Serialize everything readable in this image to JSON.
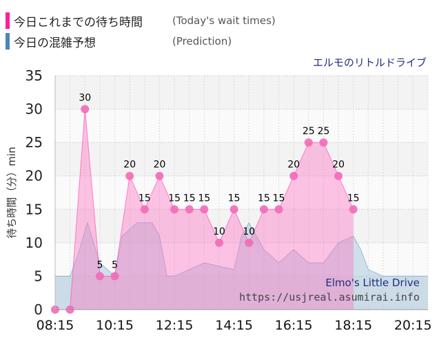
{
  "legend": [
    {
      "label": "今日これまでの待ち時間",
      "sub": "(Today's wait times)",
      "color": "#ff1f9a"
    },
    {
      "label": "今日の混雑予想",
      "sub": "(Prediction)",
      "color": "#4a86b8"
    }
  ],
  "chart_data": {
    "type": "area",
    "title": "エルモのリトルドライブ",
    "ylabel": "待ち時間（分）min",
    "xlabel": "",
    "ylim": [
      0,
      35
    ],
    "y_ticks": [
      "0",
      "5",
      "10",
      "15",
      "20",
      "25",
      "30",
      "35"
    ],
    "x_range": [
      "08:15",
      "20:45"
    ],
    "x_ticks": [
      "08:15",
      "10:15",
      "12:15",
      "14:15",
      "16:15",
      "18:15",
      "20:15"
    ],
    "grid": true,
    "series": [
      {
        "name": "今日これまでの待ち時間",
        "color": "#ff1f9a",
        "x": [
          "08:15",
          "08:45",
          "09:15",
          "09:45",
          "10:15",
          "10:45",
          "11:15",
          "11:45",
          "12:15",
          "12:45",
          "13:15",
          "13:45",
          "14:15",
          "14:45",
          "15:15",
          "15:45",
          "16:15",
          "16:45",
          "17:15",
          "17:45",
          "18:15"
        ],
        "values": [
          0,
          0,
          30,
          5,
          5,
          20,
          15,
          20,
          15,
          15,
          15,
          10,
          15,
          10,
          15,
          15,
          20,
          25,
          25,
          20,
          15
        ],
        "labels": [
          "",
          "",
          "30",
          "5",
          "5",
          "20",
          "15",
          "20",
          "15",
          "15",
          "15",
          "10",
          "15",
          "10",
          "15",
          "15",
          "20",
          "25",
          "25",
          "20",
          "15"
        ]
      },
      {
        "name": "今日の混雑予想",
        "color": "#4a86b8",
        "x": [
          "08:15",
          "08:45",
          "09:00",
          "09:20",
          "09:45",
          "10:15",
          "10:30",
          "11:00",
          "11:30",
          "11:45",
          "12:00",
          "12:15",
          "12:45",
          "13:15",
          "13:45",
          "14:15",
          "14:30",
          "14:45",
          "15:15",
          "15:45",
          "16:15",
          "16:45",
          "17:15",
          "17:45",
          "18:15",
          "18:30",
          "18:45",
          "19:15",
          "19:45",
          "20:15",
          "20:45"
        ],
        "values": [
          5,
          5,
          8,
          13,
          7,
          5,
          11,
          13,
          13,
          11,
          5,
          5,
          6,
          7,
          6.5,
          6,
          11,
          13,
          9,
          7,
          9,
          7,
          7,
          10,
          11,
          9,
          6,
          5,
          5,
          5,
          5
        ]
      }
    ],
    "watermark": {
      "name": "Elmo's Little Drive",
      "url": "https://usjreal.asumirai.info"
    }
  }
}
